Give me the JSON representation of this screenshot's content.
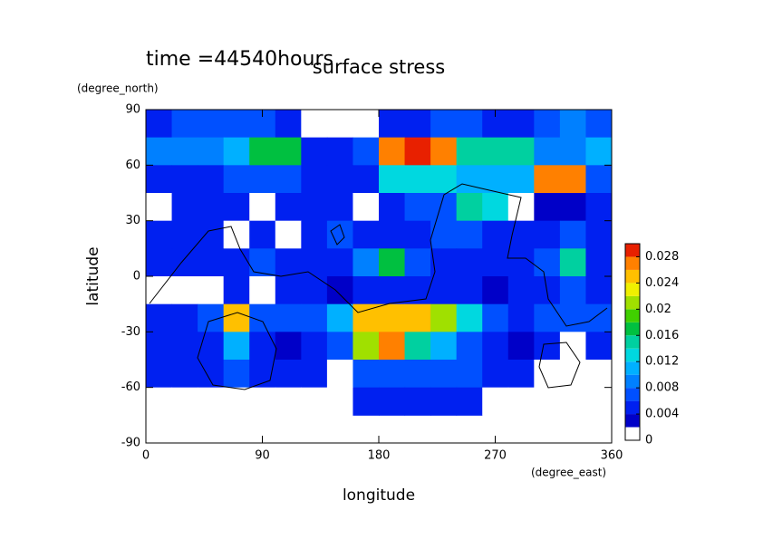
{
  "chart_data": {
    "type": "contour",
    "title": "surface stress",
    "subtitle": "time =44540hours",
    "ylabel": "latitude",
    "yunit": "(degree_north)",
    "xlabel": "longitude",
    "xunit": "(degree_east)",
    "xlim": [
      0,
      360
    ],
    "xticks": [
      0,
      90,
      180,
      270,
      360
    ],
    "ylim": [
      -90,
      90
    ],
    "yticks": [
      -90,
      -60,
      -30,
      0,
      30,
      60,
      90
    ],
    "lon": [
      10,
      30,
      50,
      70,
      90,
      110,
      130,
      150,
      170,
      190,
      210,
      230,
      250,
      270,
      290,
      310,
      330,
      350
    ],
    "lat": [
      82.5,
      67.5,
      52.5,
      37.5,
      22.5,
      7.5,
      -7.5,
      -22.5,
      -37.5,
      -52.5,
      -67.5
    ],
    "z": [
      [
        0.004,
        0.006,
        0.006,
        0.006,
        0.006,
        0.004,
        0.001,
        0.001,
        0.001,
        0.004,
        0.004,
        0.006,
        0.006,
        0.004,
        0.004,
        0.006,
        0.008,
        0.006
      ],
      [
        0.008,
        0.008,
        0.008,
        0.01,
        0.016,
        0.016,
        0.004,
        0.004,
        0.006,
        0.026,
        0.028,
        0.026,
        0.014,
        0.014,
        0.014,
        0.008,
        0.008,
        0.01
      ],
      [
        0.005,
        0.005,
        0.005,
        0.006,
        0.006,
        0.006,
        0.004,
        0.004,
        0.004,
        0.012,
        0.012,
        0.012,
        0.01,
        0.01,
        0.01,
        0.026,
        0.026,
        0.006
      ],
      [
        0.001,
        0.004,
        0.004,
        0.004,
        0.001,
        0.004,
        0.004,
        0.004,
        0.001,
        0.004,
        0.006,
        0.006,
        0.014,
        0.012,
        0.001,
        0.002,
        0.002,
        0.004
      ],
      [
        0.004,
        0.004,
        0.004,
        0.001,
        0.004,
        0.001,
        0.004,
        0.006,
        0.004,
        0.004,
        0.004,
        0.006,
        0.006,
        0.004,
        0.004,
        0.004,
        0.006,
        0.004
      ],
      [
        0.004,
        0.004,
        0.004,
        0.004,
        0.006,
        0.004,
        0.004,
        0.004,
        0.008,
        0.016,
        0.006,
        0.004,
        0.004,
        0.004,
        0.004,
        0.006,
        0.014,
        0.004
      ],
      [
        0.001,
        0.001,
        0.001,
        0.004,
        0.001,
        0.004,
        0.004,
        0.002,
        0.004,
        0.004,
        0.004,
        0.004,
        0.004,
        0.002,
        0.004,
        0.004,
        0.006,
        0.004
      ],
      [
        0.004,
        0.004,
        0.006,
        0.024,
        0.006,
        0.006,
        0.006,
        0.01,
        0.024,
        0.024,
        0.024,
        0.02,
        0.012,
        0.006,
        0.004,
        0.006,
        0.006,
        0.006
      ],
      [
        0.004,
        0.004,
        0.004,
        0.01,
        0.004,
        0.002,
        0.004,
        0.006,
        0.02,
        0.026,
        0.014,
        0.01,
        0.006,
        0.004,
        0.002,
        0.004,
        0.001,
        0.004
      ],
      [
        0.004,
        0.004,
        0.004,
        0.006,
        0.004,
        0.004,
        0.004,
        0.001,
        0.006,
        0.006,
        0.006,
        0.006,
        0.006,
        0.004,
        0.004,
        0.001,
        0.001,
        0.001
      ],
      [
        0.001,
        0.001,
        0.001,
        0.001,
        0.001,
        0.001,
        0.001,
        0.001,
        0.004,
        0.004,
        0.004,
        0.004,
        0.004,
        0.001,
        0.001,
        0.001,
        0.001,
        0.001
      ]
    ],
    "levels": [
      0,
      0.002,
      0.004,
      0.006,
      0.008,
      0.01,
      0.012,
      0.014,
      0.016,
      0.018,
      0.02,
      0.022,
      0.024,
      0.026,
      0.028,
      0.03
    ],
    "colors": [
      "#ffffff",
      "#0000c8",
      "#0020f0",
      "#0050ff",
      "#0080ff",
      "#00b0ff",
      "#00d8e0",
      "#00d0a0",
      "#00c040",
      "#40d000",
      "#a0e000",
      "#f0f000",
      "#ffc000",
      "#ff8000",
      "#e82000"
    ],
    "cticks": [
      0,
      0.004,
      0.008,
      0.012,
      0.016,
      0.02,
      0.024,
      0.028
    ]
  }
}
